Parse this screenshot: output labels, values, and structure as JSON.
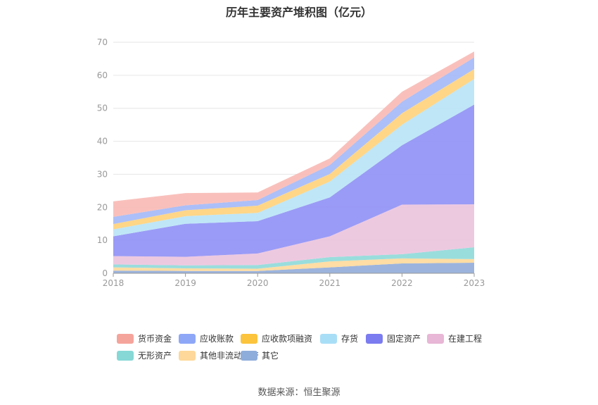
{
  "chart_data": {
    "type": "area",
    "stacked": true,
    "title": "历年主要资产堆积图（亿元）",
    "x": [
      "2018",
      "2019",
      "2020",
      "2021",
      "2022",
      "2023"
    ],
    "ylim": [
      0,
      70
    ],
    "yticks": [
      0,
      10,
      20,
      30,
      40,
      50,
      60,
      70
    ],
    "grid": true,
    "legend_position": "bottom",
    "series": [
      {
        "name": "其它",
        "color": "#91acd9",
        "values": [
          0.8,
          0.7,
          0.7,
          1.8,
          3.0,
          3.2
        ]
      },
      {
        "name": "其他非流动资产",
        "color": "#ffd99a",
        "values": [
          1.0,
          0.8,
          0.7,
          1.8,
          1.5,
          1.1
        ]
      },
      {
        "name": "无形资产",
        "color": "#8fd9d9",
        "values": [
          0.9,
          0.9,
          1.1,
          1.3,
          1.3,
          3.6
        ]
      },
      {
        "name": "在建工程",
        "color": "#ebc3dd",
        "values": [
          2.5,
          2.6,
          3.5,
          6.3,
          15.0,
          13.0
        ]
      },
      {
        "name": "固定资产",
        "color": "#8f90f5",
        "values": [
          6.0,
          10.0,
          9.8,
          11.8,
          18.0,
          30.2
        ]
      },
      {
        "name": "存货",
        "color": "#b8e3f6",
        "values": [
          2.1,
          2.3,
          2.5,
          4.8,
          6.2,
          7.8
        ]
      },
      {
        "name": "应收款项融资",
        "color": "#ffd27a",
        "values": [
          1.6,
          1.8,
          2.2,
          2.3,
          3.5,
          3.0
        ]
      },
      {
        "name": "应收账款",
        "color": "#a3b8f7",
        "values": [
          2.2,
          1.5,
          1.7,
          2.7,
          3.5,
          3.5
        ]
      },
      {
        "name": "货币资金",
        "color": "#f8b9b4",
        "values": [
          4.7,
          3.7,
          2.3,
          2.0,
          3.0,
          1.8
        ]
      }
    ]
  },
  "legend": {
    "items": [
      {
        "label": "货币资金",
        "color": "#f5a49c"
      },
      {
        "label": "应收账款",
        "color": "#8ea7f7"
      },
      {
        "label": "应收款项融资",
        "color": "#fcc43d"
      },
      {
        "label": "存货",
        "color": "#a9def7"
      },
      {
        "label": "固定资产",
        "color": "#7b7cf0"
      },
      {
        "label": "在建工程",
        "color": "#e8b6d6"
      },
      {
        "label": "无形资产",
        "color": "#86d8d6"
      },
      {
        "label": "其他非流动资产",
        "color": "#fdd89a"
      },
      {
        "label": "其它",
        "color": "#8eaddb"
      }
    ]
  },
  "source_text": "数据来源：恒生聚源"
}
